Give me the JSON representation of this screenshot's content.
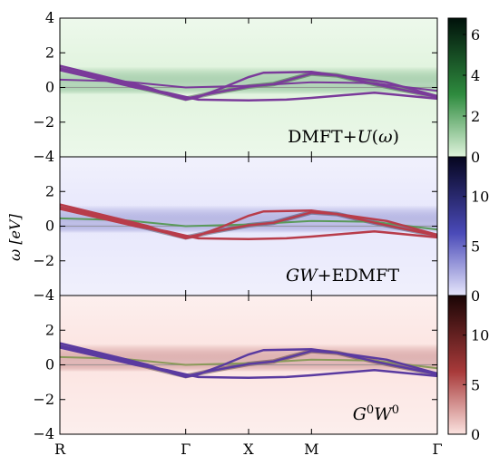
{
  "chart_data": {
    "type": "heatmap",
    "ylabel": "ω [eV]",
    "ylim": [
      -4,
      4
    ],
    "y_ticks": [
      4,
      2,
      0,
      -2,
      -4
    ],
    "x_ticks": [
      "R",
      "Γ",
      "X",
      "M",
      "Γ"
    ],
    "x_tick_positions": [
      0,
      1,
      1.5,
      2,
      3
    ],
    "xlim": [
      0,
      3
    ],
    "panels": [
      {
        "label": "DMFT+U(ω)",
        "colormap": "greens",
        "color_high": "#00110a",
        "color_mid": "#2e8b3e",
        "color_low": "#dff3dc",
        "colorbar_ticks": [
          0,
          2,
          4,
          6
        ],
        "colorbar_range": [
          0,
          6.8
        ],
        "band_color": "#7a3a9a"
      },
      {
        "label": "GW+EDMFT",
        "colormap": "blues",
        "color_high": "#05051f",
        "color_mid": "#4a4ab8",
        "color_low": "#e6e6fb",
        "colorbar_ticks": [
          0,
          5,
          10
        ],
        "colorbar_range": [
          0,
          14
        ],
        "band_color": "#b83c4a",
        "band_color_secondary": "#5a9a5a"
      },
      {
        "label": "G0W0",
        "colormap": "reds",
        "color_high": "#1a0505",
        "color_mid": "#a83a3a",
        "color_low": "#fbe3e0",
        "colorbar_ticks": [
          0,
          5,
          10
        ],
        "colorbar_range": [
          0,
          14
        ],
        "band_color": "#5a3aa0",
        "band_color_secondary": "#8a9a5a"
      }
    ],
    "bands": {
      "upper": [
        [
          0,
          1.25
        ],
        [
          0.2,
          0.9
        ],
        [
          0.45,
          0.45
        ],
        [
          0.7,
          0.0
        ],
        [
          0.9,
          -0.5
        ],
        [
          1.0,
          -0.7
        ],
        [
          1.1,
          -0.55
        ],
        [
          1.3,
          0.0
        ],
        [
          1.5,
          0.6
        ],
        [
          1.62,
          0.85
        ],
        [
          2.0,
          0.9
        ],
        [
          2.3,
          0.6
        ],
        [
          2.6,
          0.3
        ],
        [
          3.0,
          -0.5
        ]
      ],
      "middle": [
        [
          0,
          1.1
        ],
        [
          0.25,
          0.7
        ],
        [
          0.5,
          0.25
        ],
        [
          0.8,
          -0.3
        ],
        [
          1.0,
          -0.65
        ],
        [
          1.2,
          -0.35
        ],
        [
          1.5,
          0.05
        ],
        [
          1.7,
          0.2
        ],
        [
          2.0,
          0.8
        ],
        [
          2.2,
          0.7
        ],
        [
          2.5,
          0.2
        ],
        [
          3.0,
          -0.55
        ]
      ],
      "lower": [
        [
          0,
          1.0
        ],
        [
          0.3,
          0.5
        ],
        [
          0.6,
          0.0
        ],
        [
          0.85,
          -0.3
        ],
        [
          1.0,
          -0.55
        ],
        [
          1.1,
          -0.7
        ],
        [
          1.5,
          -0.75
        ],
        [
          1.8,
          -0.7
        ],
        [
          2.0,
          -0.6
        ],
        [
          2.5,
          -0.3
        ],
        [
          3.0,
          -0.65
        ]
      ],
      "flat_green": [
        [
          0,
          0.45
        ],
        [
          0.5,
          0.35
        ],
        [
          1.0,
          0.0
        ],
        [
          1.5,
          0.1
        ],
        [
          2.0,
          0.3
        ],
        [
          2.5,
          0.25
        ],
        [
          3.0,
          -0.2
        ]
      ]
    }
  }
}
